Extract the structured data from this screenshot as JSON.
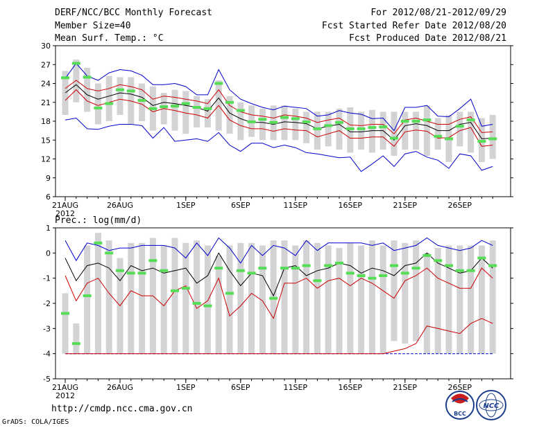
{
  "header": {
    "title": "DERF/NCC/BCC Monthly Forecast",
    "member_size": "Member Size=40",
    "variable": "Mean Surf. Temp.: °C",
    "period": "For 2012/08/21-2012/09/29",
    "started": "Fcst Started Refer Date 2012/08/20",
    "produced": "Fcst Produced Date 2012/08/21"
  },
  "footer": {
    "url": "http://cmdp.ncc.cma.gov.cn",
    "grads": "GrADS: COLA/IGES",
    "logo_bcc": "BCC",
    "logo_ncc": "NCC"
  },
  "colors": {
    "mean": "#000000",
    "spread": "#cc0000",
    "extreme": "#0000cc",
    "box": "#d3d3d6",
    "marker": "#55dd55"
  },
  "chart_data": [
    {
      "type": "line",
      "title": "Mean Surf. Temp.: °C",
      "xlabel": "",
      "ylabel": "°C",
      "x": [
        1,
        2,
        3,
        4,
        5,
        6,
        7,
        8,
        9,
        10,
        11,
        12,
        13,
        14,
        15,
        16,
        17,
        18,
        19,
        20,
        21,
        22,
        23,
        24,
        25,
        26,
        27,
        28,
        29,
        30,
        31,
        32,
        33,
        34,
        35,
        36,
        37,
        38,
        39,
        40
      ],
      "x_tick_labels": [
        {
          "x": 1,
          "label": "21AUG"
        },
        {
          "x": 6,
          "label": "26AUG"
        },
        {
          "x": 12,
          "label": "1SEP"
        },
        {
          "x": 17,
          "label": "6SEP"
        },
        {
          "x": 22,
          "label": "11SEP"
        },
        {
          "x": 27,
          "label": "16SEP"
        },
        {
          "x": 32,
          "label": "21SEP"
        },
        {
          "x": 37,
          "label": "26SEP"
        }
      ],
      "year_label": "2012",
      "ylim": [
        6,
        30
      ],
      "yticks": [
        6,
        9,
        12,
        15,
        18,
        21,
        24,
        27,
        30
      ],
      "series": [
        {
          "name": "ensemble mean",
          "color": "#000000",
          "values": [
            22.5,
            23.8,
            22.2,
            21.5,
            22.0,
            22.5,
            22.3,
            21.8,
            20.5,
            21.0,
            20.8,
            20.5,
            20.2,
            19.6,
            21.7,
            19.3,
            18.4,
            17.8,
            17.8,
            17.5,
            17.9,
            17.8,
            17.6,
            16.8,
            17.2,
            17.5,
            16.3,
            16.3,
            16.5,
            16.5,
            15.0,
            17.3,
            17.6,
            17.3,
            16.5,
            16.5,
            17.5,
            17.8,
            15.2,
            15.3
          ]
        },
        {
          "name": "spread upper",
          "color": "#cc0000",
          "values": [
            23.2,
            24.5,
            23.2,
            22.8,
            23.2,
            23.8,
            23.5,
            23.0,
            21.5,
            22.0,
            21.8,
            21.5,
            21.2,
            20.8,
            23.0,
            20.5,
            19.5,
            19.0,
            18.8,
            18.5,
            19.0,
            18.8,
            18.5,
            17.8,
            18.2,
            18.5,
            17.4,
            17.3,
            17.5,
            17.5,
            16.0,
            18.2,
            18.5,
            18.0,
            17.5,
            17.5,
            18.3,
            18.7,
            16.2,
            16.3
          ]
        },
        {
          "name": "spread lower",
          "color": "#cc0000",
          "values": [
            21.3,
            23.0,
            21.2,
            20.5,
            21.0,
            21.5,
            21.2,
            20.7,
            19.5,
            20.0,
            19.7,
            19.3,
            19.0,
            18.5,
            20.5,
            18.2,
            17.3,
            16.8,
            16.8,
            16.4,
            16.8,
            16.6,
            16.5,
            15.5,
            16.0,
            16.5,
            15.3,
            15.3,
            15.5,
            15.5,
            14.0,
            16.3,
            16.6,
            16.4,
            15.3,
            15.4,
            16.5,
            17.0,
            14.0,
            14.2
          ]
        },
        {
          "name": "maximum",
          "color": "#0000cc",
          "values": [
            24.8,
            27.2,
            25.2,
            24.5,
            25.7,
            26.2,
            26.0,
            25.3,
            23.8,
            23.8,
            24.0,
            23.5,
            22.2,
            22.2,
            26.2,
            23.0,
            21.5,
            20.8,
            20.2,
            19.8,
            20.4,
            20.2,
            20.0,
            18.8,
            19.0,
            19.7,
            19.3,
            19.1,
            18.4,
            18.5,
            16.5,
            20.2,
            20.2,
            20.5,
            18.8,
            18.7,
            20.0,
            21.5,
            17.2,
            17.5
          ]
        },
        {
          "name": "minimum",
          "color": "#0000cc",
          "values": [
            18.2,
            18.5,
            16.8,
            16.7,
            17.2,
            17.5,
            17.5,
            17.3,
            15.3,
            17.0,
            14.8,
            15.0,
            15.2,
            14.8,
            16.2,
            14.2,
            13.2,
            14.5,
            14.5,
            13.8,
            14.2,
            13.8,
            13.0,
            12.8,
            12.5,
            12.2,
            12.3,
            10.0,
            11.2,
            12.5,
            10.8,
            12.8,
            13.2,
            12.3,
            11.8,
            10.5,
            12.8,
            12.5,
            10.2,
            10.8
          ]
        },
        {
          "name": "box max",
          "color": "#d3d3d6",
          "values": [
            26.0,
            27.8,
            26.5,
            24.0,
            25.2,
            25.0,
            25.0,
            24.0,
            23.5,
            22.5,
            23.0,
            22.8,
            22.0,
            21.5,
            24.5,
            22.0,
            21.0,
            20.5,
            20.0,
            20.5,
            20.5,
            20.0,
            19.5,
            19.5,
            19.5,
            20.0,
            20.2,
            19.5,
            19.8,
            19.5,
            19.5,
            19.5,
            19.5,
            20.5,
            18.5,
            19.0,
            19.5,
            19.5,
            18.5,
            19.0
          ]
        },
        {
          "name": "box min",
          "color": "#d3d3d6",
          "values": [
            19.0,
            21.0,
            19.5,
            17.5,
            18.0,
            19.0,
            17.5,
            18.0,
            16.5,
            17.5,
            16.5,
            16.0,
            17.0,
            17.0,
            16.5,
            16.0,
            15.0,
            15.5,
            15.0,
            15.0,
            15.0,
            15.0,
            14.5,
            13.5,
            14.0,
            13.5,
            13.0,
            13.5,
            13.0,
            13.5,
            12.5,
            13.5,
            13.5,
            12.5,
            13.5,
            11.5,
            14.0,
            13.0,
            11.5,
            12.0
          ]
        },
        {
          "name": "observation",
          "color": "#55dd55",
          "values": [
            24.9,
            27.2,
            25.0,
            20.1,
            20.8,
            23.0,
            22.8,
            21.3,
            20.0,
            20.3,
            20.4,
            20.8,
            20.2,
            20.0,
            24.0,
            21.0,
            19.7,
            17.9,
            18.3,
            17.8,
            18.6,
            18.4,
            17.9,
            16.8,
            17.3,
            17.8,
            16.8,
            16.8,
            17.0,
            17.1,
            15.3,
            18.0,
            18.0,
            18.2,
            15.6,
            15.2,
            17.2,
            18.2,
            14.8,
            15.2
          ]
        }
      ]
    },
    {
      "type": "line",
      "title": "Prec.: log(mm/d)",
      "xlabel": "",
      "ylabel": "log(mm/d)",
      "x": [
        1,
        2,
        3,
        4,
        5,
        6,
        7,
        8,
        9,
        10,
        11,
        12,
        13,
        14,
        15,
        16,
        17,
        18,
        19,
        20,
        21,
        22,
        23,
        24,
        25,
        26,
        27,
        28,
        29,
        30,
        31,
        32,
        33,
        34,
        35,
        36,
        37,
        38,
        39,
        40
      ],
      "x_tick_labels": [
        {
          "x": 1,
          "label": "21AUG"
        },
        {
          "x": 6,
          "label": "26AUG"
        },
        {
          "x": 12,
          "label": "1SEP"
        },
        {
          "x": 17,
          "label": "6SEP"
        },
        {
          "x": 22,
          "label": "11SEP"
        },
        {
          "x": 27,
          "label": "16SEP"
        },
        {
          "x": 32,
          "label": "21SEP"
        },
        {
          "x": 37,
          "label": "26SEP"
        }
      ],
      "year_label": "2012",
      "ylim": [
        -5,
        1
      ],
      "yticks": [
        -5,
        -4,
        -3,
        -2,
        -1,
        0,
        1
      ],
      "series": [
        {
          "name": "ensemble mean",
          "color": "#000000",
          "values": [
            -0.2,
            -1.1,
            -0.5,
            -0.4,
            -0.6,
            -1.1,
            -0.5,
            -0.7,
            -0.6,
            -0.8,
            -0.7,
            -0.6,
            -1.2,
            -0.9,
            0.0,
            -0.7,
            -1.3,
            -0.8,
            -0.9,
            -1.7,
            -0.6,
            -0.5,
            -0.9,
            -0.7,
            -0.6,
            -0.4,
            -0.5,
            -0.8,
            -0.6,
            -0.7,
            -0.9,
            -0.5,
            -0.4,
            0.0,
            -0.4,
            -0.6,
            -0.8,
            -0.7,
            -0.2,
            -0.6
          ]
        },
        {
          "name": "spread upper",
          "color": "#cc0000",
          "values": [
            -0.9,
            -1.9,
            -1.2,
            -1.0,
            -1.6,
            -2.1,
            -1.5,
            -1.7,
            -1.7,
            -2.1,
            -1.5,
            -1.3,
            -2.2,
            -1.9,
            -1.0,
            -2.5,
            -2.1,
            -1.6,
            -1.9,
            -2.6,
            -1.2,
            -1.2,
            -1.0,
            -1.4,
            -1.1,
            -1.0,
            -1.3,
            -1.0,
            -1.2,
            -1.5,
            -1.8,
            -1.1,
            -0.9,
            -0.6,
            -1.0,
            -1.2,
            -1.4,
            -1.4,
            -0.6,
            -1.0
          ]
        },
        {
          "name": "spread lower",
          "color": "#cc0000",
          "values": [
            -4,
            -4,
            -4,
            -4,
            -4,
            -4,
            -4,
            -4,
            -4,
            -4,
            -4,
            -4,
            -4,
            -4,
            -4,
            -4,
            -4,
            -4,
            -4,
            -4,
            -4,
            -4,
            -4,
            -4,
            -4,
            -4,
            -4,
            -4,
            -4,
            -4,
            -3.9,
            -3.8,
            -3.6,
            -2.9,
            -3.0,
            -3.1,
            -3.2,
            -2.8,
            -2.6,
            -2.8
          ]
        },
        {
          "name": "maximum",
          "color": "#0000cc",
          "values": [
            0.5,
            -0.3,
            0.4,
            0.3,
            0.1,
            0.2,
            0.2,
            0.3,
            0.3,
            0.3,
            0.2,
            -0.2,
            0.4,
            -0.1,
            0.6,
            0.2,
            -0.4,
            0.3,
            -0.1,
            0.3,
            0.2,
            -0.1,
            0.5,
            0.1,
            0.4,
            0.4,
            0.4,
            0.4,
            0.3,
            0.4,
            0.1,
            0.2,
            0.3,
            0.6,
            0.3,
            0.2,
            0.1,
            0.2,
            0.5,
            0.3
          ]
        },
        {
          "name": "minimum",
          "color": "#0000cc",
          "values": [
            -4,
            -4,
            -4,
            -4,
            -4,
            -4,
            -4,
            -4,
            -4,
            -4,
            -4,
            -4,
            -4,
            -4,
            -4,
            -4,
            -4,
            -4,
            -4,
            -4,
            -4,
            -4,
            -4,
            -4,
            -4,
            -4,
            -4,
            -4,
            -4,
            -4,
            -4,
            -4,
            -4,
            -4,
            -4,
            -4,
            -4,
            -4,
            -4,
            -4
          ]
        },
        {
          "name": "box max",
          "color": "#d3d3d6",
          "values": [
            -1.6,
            -2.8,
            0.3,
            0.8,
            0.5,
            -0.2,
            0.4,
            0.4,
            0.6,
            0.3,
            0.6,
            0.4,
            0.5,
            0.3,
            -0.1,
            0.3,
            0.4,
            0.4,
            0.3,
            0.5,
            0.5,
            0.3,
            0.5,
            0.4,
            0.3,
            0.2,
            0.4,
            0.3,
            0.5,
            0.3,
            0.5,
            0.4,
            0.5,
            0.0,
            0.2,
            0.3,
            0.3,
            0.3,
            0.3,
            0.5
          ]
        },
        {
          "name": "box min",
          "color": "#d3d3d6",
          "values": [
            -4,
            -4,
            -4,
            -4,
            -4,
            -4,
            -4,
            -4,
            -4,
            -4,
            -4,
            -4,
            -4,
            -4,
            -4,
            -4,
            -4,
            -4,
            -4,
            -4,
            -4,
            -4,
            -4,
            -4,
            -4,
            -4,
            -4,
            -4,
            -4,
            -4,
            -3.5,
            -3.6,
            -3.5,
            -4,
            -4,
            -4,
            -4,
            -4,
            -4,
            -4
          ]
        },
        {
          "name": "observation",
          "color": "#55dd55",
          "values": [
            -2.4,
            -3.6,
            -1.7,
            0.4,
            0.0,
            -0.7,
            -0.8,
            -0.8,
            -0.3,
            -0.7,
            -1.5,
            -1.4,
            -2.0,
            -2.1,
            -0.6,
            -1.6,
            -0.7,
            -0.8,
            -0.6,
            -1.8,
            -0.6,
            -0.6,
            -0.5,
            -1.1,
            -0.5,
            -0.4,
            -0.8,
            -0.9,
            -1.0,
            -0.9,
            -0.5,
            -0.8,
            -0.6,
            -0.1,
            -0.3,
            -0.5,
            -0.7,
            -0.7,
            -0.2,
            -0.5
          ]
        }
      ]
    }
  ]
}
